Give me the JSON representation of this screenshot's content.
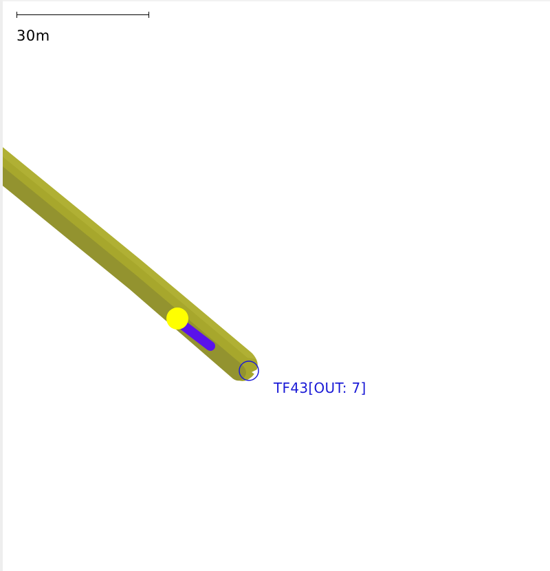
{
  "scale": {
    "label": "30m"
  },
  "road": {
    "edge_color": "#a7a72c",
    "shade_color": "#93932f"
  },
  "vehicle": {
    "color": "#5a12ea"
  },
  "person": {
    "color": "#ffff00"
  },
  "traffic_light": {
    "label": "TF43[OUT: 7]",
    "color": "#1a1ad6"
  }
}
